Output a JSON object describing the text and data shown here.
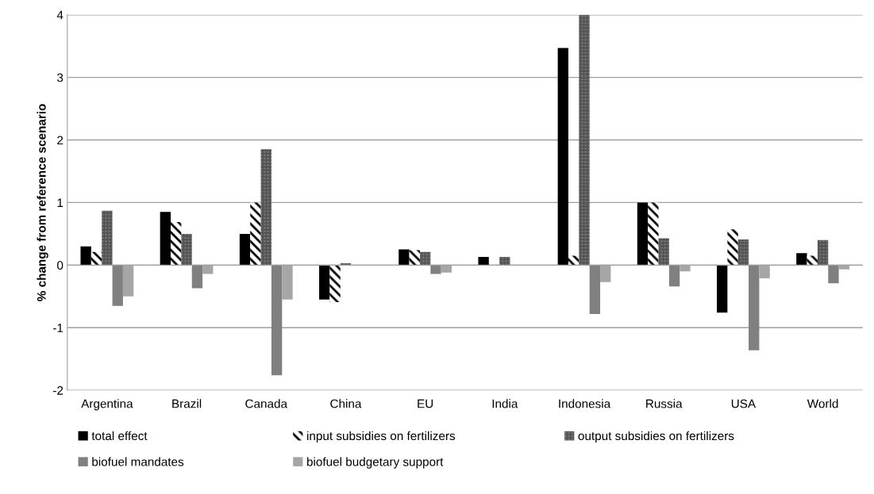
{
  "chart_data": {
    "type": "bar",
    "ylabel": "% change from reference scenario",
    "categories": [
      "Argentina",
      "Brazil",
      "Canada",
      "China",
      "EU",
      "India",
      "Indonesia",
      "Russia",
      "USA",
      "World"
    ],
    "series": [
      {
        "name": "total effect",
        "color": "#000000",
        "values": [
          0.3,
          0.85,
          0.5,
          -0.55,
          0.25,
          0.13,
          3.47,
          1.0,
          -0.76,
          0.19
        ]
      },
      {
        "name": "input subsidies on fertilizers",
        "color": "#ffffff",
        "values": [
          0.21,
          0.69,
          1.0,
          -0.59,
          0.24,
          0,
          0.15,
          1.0,
          0.57,
          0.15
        ]
      },
      {
        "name": "output subsidies on fertilizers",
        "color": "#a0a0a0",
        "values": [
          0.87,
          0.5,
          1.85,
          0.03,
          0.21,
          0.13,
          4.0,
          0.43,
          0.41,
          0.4
        ]
      },
      {
        "name": "biofuel mandates",
        "color": "#808080",
        "values": [
          -0.65,
          -0.37,
          -1.76,
          0,
          -0.14,
          0,
          -0.78,
          -0.34,
          -1.36,
          -0.29
        ]
      },
      {
        "name": "biofuel budgetary support",
        "color": "#a6a6a6",
        "values": [
          -0.5,
          -0.14,
          -0.55,
          null,
          -0.12,
          0,
          -0.27,
          -0.1,
          -0.21,
          -0.07
        ]
      }
    ],
    "ylim": [
      -2,
      4
    ],
    "yticks": [
      -2,
      -1,
      0,
      1,
      2,
      3,
      4
    ],
    "grid": "y",
    "legend": "bottom"
  }
}
